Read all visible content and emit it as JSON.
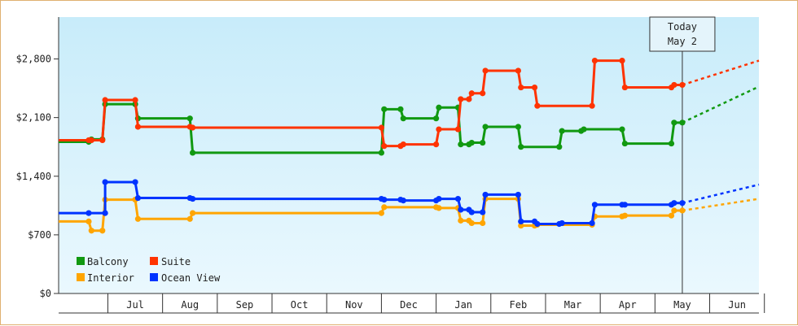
{
  "chart_data": {
    "type": "line",
    "title": "",
    "xlabel": "",
    "ylabel": "",
    "y_ticks": [
      "$0",
      "$700",
      "$1,400",
      "$2,100",
      "$2,800"
    ],
    "y_tick_values": [
      0,
      700,
      1400,
      2100,
      2800
    ],
    "ylim": [
      0,
      3300
    ],
    "x_ticks": [
      "Jul",
      "Aug",
      "Sep",
      "Oct",
      "Nov",
      "Dec",
      "Jan",
      "Feb",
      "Mar",
      "Apr",
      "May",
      "Jun"
    ],
    "xlim": [
      -1.4,
      11.4
    ],
    "step": true,
    "grid": false,
    "legend_position": "bottom-left",
    "background": "gradient light blue",
    "today_marker": {
      "line1": "Today",
      "line2": "May 2",
      "x": 10.0
    },
    "series": [
      {
        "name": "Balcony",
        "color": "#119911",
        "points": [
          [
            -1.4,
            1810
          ],
          [
            -0.85,
            1810
          ],
          [
            -0.8,
            1840
          ],
          [
            -0.6,
            1840
          ],
          [
            -0.55,
            2260
          ],
          [
            0.0,
            2260
          ],
          [
            0.05,
            2090
          ],
          [
            1.0,
            2090
          ],
          [
            1.05,
            1680
          ],
          [
            4.5,
            1680
          ],
          [
            4.55,
            2200
          ],
          [
            4.85,
            2200
          ],
          [
            4.9,
            2090
          ],
          [
            5.5,
            2090
          ],
          [
            5.55,
            2220
          ],
          [
            5.9,
            2220
          ],
          [
            5.95,
            1780
          ],
          [
            6.1,
            1780
          ],
          [
            6.15,
            1800
          ],
          [
            6.35,
            1800
          ],
          [
            6.4,
            1990
          ],
          [
            7.0,
            1990
          ],
          [
            7.05,
            1750
          ],
          [
            7.75,
            1750
          ],
          [
            7.8,
            1940
          ],
          [
            8.15,
            1940
          ],
          [
            8.2,
            1960
          ],
          [
            8.9,
            1960
          ],
          [
            8.95,
            1790
          ],
          [
            9.8,
            1790
          ],
          [
            9.85,
            2040
          ],
          [
            10.0,
            2040
          ]
        ],
        "projection": [
          [
            10.0,
            2040
          ],
          [
            11.4,
            2470
          ]
        ]
      },
      {
        "name": "Suite",
        "color": "#ff3300",
        "points": [
          [
            -1.4,
            1830
          ],
          [
            -0.85,
            1830
          ],
          [
            -0.8,
            1830
          ],
          [
            -0.6,
            1830
          ],
          [
            -0.55,
            2310
          ],
          [
            0.0,
            2310
          ],
          [
            0.05,
            1990
          ],
          [
            1.0,
            1990
          ],
          [
            1.05,
            1980
          ],
          [
            4.5,
            1980
          ],
          [
            4.55,
            1760
          ],
          [
            4.85,
            1760
          ],
          [
            4.9,
            1780
          ],
          [
            5.5,
            1780
          ],
          [
            5.55,
            1960
          ],
          [
            5.9,
            1960
          ],
          [
            5.95,
            2320
          ],
          [
            6.1,
            2320
          ],
          [
            6.15,
            2390
          ],
          [
            6.35,
            2390
          ],
          [
            6.4,
            2660
          ],
          [
            7.0,
            2660
          ],
          [
            7.05,
            2460
          ],
          [
            7.3,
            2460
          ],
          [
            7.35,
            2240
          ],
          [
            8.35,
            2240
          ],
          [
            8.4,
            2780
          ],
          [
            8.9,
            2780
          ],
          [
            8.95,
            2460
          ],
          [
            9.8,
            2460
          ],
          [
            9.85,
            2490
          ],
          [
            10.0,
            2490
          ]
        ],
        "projection": [
          [
            10.0,
            2490
          ],
          [
            11.4,
            2780
          ]
        ]
      },
      {
        "name": "Interior",
        "color": "#ffa500",
        "points": [
          [
            -1.4,
            860
          ],
          [
            -0.85,
            860
          ],
          [
            -0.8,
            750
          ],
          [
            -0.6,
            750
          ],
          [
            -0.55,
            1120
          ],
          [
            0.0,
            1120
          ],
          [
            0.05,
            890
          ],
          [
            1.0,
            890
          ],
          [
            1.05,
            960
          ],
          [
            4.5,
            960
          ],
          [
            4.55,
            1030
          ],
          [
            5.5,
            1030
          ],
          [
            5.55,
            1020
          ],
          [
            5.9,
            1020
          ],
          [
            5.95,
            870
          ],
          [
            6.1,
            870
          ],
          [
            6.15,
            840
          ],
          [
            6.35,
            840
          ],
          [
            6.4,
            1130
          ],
          [
            7.0,
            1130
          ],
          [
            7.05,
            810
          ],
          [
            7.3,
            810
          ],
          [
            7.35,
            820
          ],
          [
            8.35,
            820
          ],
          [
            8.4,
            920
          ],
          [
            8.9,
            920
          ],
          [
            8.95,
            930
          ],
          [
            9.8,
            930
          ],
          [
            9.85,
            990
          ],
          [
            10.0,
            990
          ]
        ],
        "projection": [
          [
            10.0,
            990
          ],
          [
            11.4,
            1130
          ]
        ]
      },
      {
        "name": "Ocean View",
        "color": "#0033ff",
        "points": [
          [
            -1.4,
            960
          ],
          [
            -0.85,
            960
          ],
          [
            -0.55,
            960
          ],
          [
            -0.55,
            1330
          ],
          [
            0.0,
            1330
          ],
          [
            0.05,
            1140
          ],
          [
            1.0,
            1140
          ],
          [
            1.05,
            1130
          ],
          [
            4.5,
            1130
          ],
          [
            4.55,
            1120
          ],
          [
            4.85,
            1120
          ],
          [
            4.9,
            1110
          ],
          [
            5.5,
            1110
          ],
          [
            5.55,
            1130
          ],
          [
            5.9,
            1130
          ],
          [
            5.95,
            1000
          ],
          [
            6.1,
            1000
          ],
          [
            6.15,
            970
          ],
          [
            6.35,
            970
          ],
          [
            6.4,
            1180
          ],
          [
            7.0,
            1180
          ],
          [
            7.05,
            860
          ],
          [
            7.3,
            860
          ],
          [
            7.35,
            830
          ],
          [
            7.75,
            830
          ],
          [
            7.8,
            840
          ],
          [
            8.35,
            840
          ],
          [
            8.4,
            1060
          ],
          [
            8.9,
            1060
          ],
          [
            8.95,
            1060
          ],
          [
            9.8,
            1060
          ],
          [
            9.85,
            1080
          ],
          [
            10.0,
            1080
          ]
        ],
        "projection": [
          [
            10.0,
            1080
          ],
          [
            11.4,
            1300
          ]
        ]
      }
    ]
  }
}
